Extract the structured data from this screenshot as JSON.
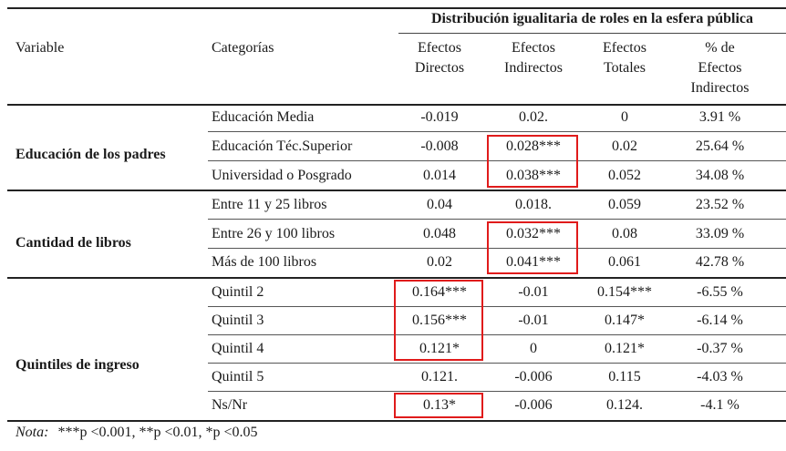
{
  "header": {
    "spanning_title": "Distribución igualitaria de roles en la esfera pública",
    "col_variable": "Variable",
    "col_categorias": "Categorías",
    "col_directos": [
      "Efectos",
      "Directos"
    ],
    "col_indirectos": [
      "Efectos",
      "Indirectos"
    ],
    "col_totales": [
      "Efectos",
      "Totales"
    ],
    "col_pct": [
      "% de",
      "Efectos",
      "Indirectos"
    ]
  },
  "groups": [
    {
      "label": "Educación de los padres",
      "rows": [
        {
          "cat": "Educación Media",
          "dir": "-0.019",
          "ind": "0.02.",
          "tot": "0",
          "pct": "3.91 %"
        },
        {
          "cat": "Educación Téc.Superior",
          "dir": "-0.008",
          "ind": "0.028***",
          "tot": "0.02",
          "pct": "25.64 %"
        },
        {
          "cat": "Universidad o Posgrado",
          "dir": "0.014",
          "ind": "0.038***",
          "tot": "0.052",
          "pct": "34.08 %"
        }
      ]
    },
    {
      "label": "Cantidad de libros",
      "rows": [
        {
          "cat": "Entre 11 y 25 libros",
          "dir": "0.04",
          "ind": "0.018.",
          "tot": "0.059",
          "pct": "23.52 %"
        },
        {
          "cat": "Entre 26 y 100 libros",
          "dir": "0.048",
          "ind": "0.032***",
          "tot": "0.08",
          "pct": "33.09 %"
        },
        {
          "cat": "Más de 100 libros",
          "dir": "0.02",
          "ind": "0.041***",
          "tot": "0.061",
          "pct": "42.78 %"
        }
      ]
    },
    {
      "label": "Quintiles de ingreso",
      "rows": [
        {
          "cat": "Quintil 2",
          "dir": "0.164***",
          "ind": "-0.01",
          "tot": "0.154***",
          "pct": "-6.55 %"
        },
        {
          "cat": "Quintil 3",
          "dir": "0.156***",
          "ind": "-0.01",
          "tot": "0.147*",
          "pct": "-6.14 %"
        },
        {
          "cat": "Quintil 4",
          "dir": "0.121*",
          "ind": "0",
          "tot": "0.121*",
          "pct": "-0.37 %"
        },
        {
          "cat": "Quintil 5",
          "dir": "0.121.",
          "ind": "-0.006",
          "tot": "0.115",
          "pct": "-4.03 %"
        },
        {
          "cat": "Ns/Nr",
          "dir": "0.13*",
          "ind": "-0.006",
          "tot": "0.124.",
          "pct": "-4.1 %"
        }
      ]
    }
  ],
  "note": {
    "label": "Nota:",
    "text": "***p <0.001, **p <0.01, *p <0.05"
  },
  "highlight_color": "#e01b1b"
}
